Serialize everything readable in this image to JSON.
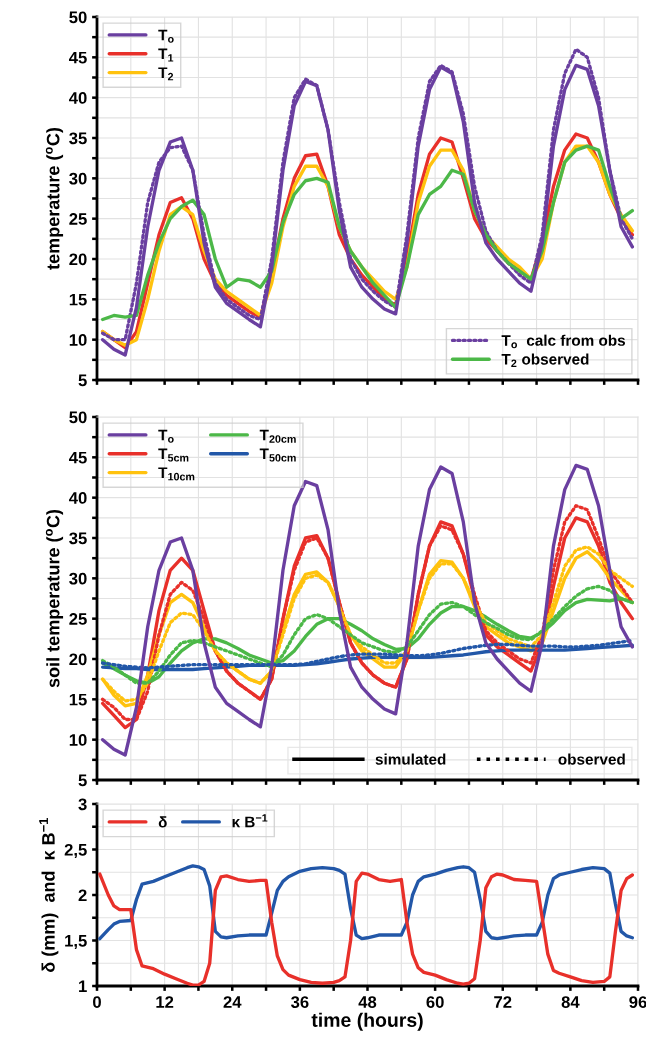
{
  "chart_data": [
    {
      "type": "line",
      "ylabel": "temperature ($^{o}$C)",
      "xlim": [
        0,
        96
      ],
      "ylim": [
        5,
        50
      ],
      "xticks": [
        0,
        {
          "value": 6,
          "label": null
        },
        12,
        {
          "value": 18,
          "label": null
        },
        24,
        {
          "value": 30,
          "label": null
        },
        36,
        {
          "value": 42,
          "label": null
        },
        48,
        {
          "value": 54,
          "label": null
        },
        60,
        {
          "value": 66,
          "label": null
        },
        72,
        {
          "value": 78,
          "label": null
        },
        84,
        {
          "value": 90,
          "label": null
        },
        96
      ],
      "yticks": [
        5,
        {
          "value": 7.5,
          "label": null
        },
        10,
        {
          "value": 12.5,
          "label": null
        },
        15,
        {
          "value": 17.5,
          "label": null
        },
        20,
        {
          "value": 22.5,
          "label": null
        },
        25,
        {
          "value": 27.5,
          "label": null
        },
        30,
        {
          "value": 32.5,
          "label": null
        },
        35,
        {
          "value": 37.5,
          "label": null
        },
        40,
        {
          "value": 42.5,
          "label": null
        },
        45,
        {
          "value": 47.5,
          "label": null
        },
        50
      ],
      "tick_labels": "y",
      "grid": true,
      "legend": "top left",
      "line_style": "solid",
      "x": [
        1,
        3,
        5,
        7,
        9,
        11,
        13,
        15,
        17,
        19,
        21,
        23,
        25,
        27,
        29,
        31,
        33,
        35,
        37,
        39,
        41,
        43,
        45,
        47,
        49,
        51,
        53,
        55,
        57,
        59,
        61,
        63,
        65,
        67,
        69,
        71,
        73,
        75,
        77,
        79,
        81,
        83,
        85,
        87,
        89,
        91,
        93,
        95
      ],
      "series": [
        {
          "name": "T$_{o}$",
          "color": "#6a3fa0",
          "values": [
            10,
            8.8,
            8.1,
            14,
            24,
            31,
            34.5,
            35,
            31,
            22,
            16.5,
            14.5,
            13.5,
            12.5,
            11.6,
            19,
            31,
            39,
            42,
            41.5,
            36,
            26,
            19,
            16.5,
            15,
            13.8,
            13.2,
            22,
            34,
            41,
            43.8,
            43,
            37,
            27,
            22,
            20,
            18.5,
            17,
            16,
            22,
            34,
            41,
            44,
            43.5,
            39,
            31,
            24,
            21.5
          ]
        },
        {
          "name": "T$_{1}$",
          "color": "#e8302a",
          "values": [
            11,
            10,
            9,
            11,
            17,
            23,
            27,
            27.6,
            25,
            20,
            17,
            15.5,
            14.5,
            13.5,
            12.8,
            18,
            25,
            30,
            32.8,
            33,
            29,
            23,
            20,
            18,
            16.5,
            15,
            14.3,
            20,
            28,
            33,
            35,
            34.5,
            30,
            25,
            22.5,
            21,
            19.5,
            18.5,
            17.5,
            22,
            29,
            33.5,
            35.5,
            35,
            32,
            28,
            25,
            23
          ]
        },
        {
          "name": "T$_{2}$",
          "color": "#ffc20e",
          "values": [
            11,
            10,
            9.3,
            10,
            15,
            21,
            25.5,
            26.5,
            25.5,
            21,
            17.5,
            16,
            15,
            14,
            13,
            17,
            24,
            29,
            31.5,
            31.5,
            29,
            24,
            21,
            19,
            17.5,
            16,
            15,
            19,
            27,
            31.5,
            33.5,
            33.5,
            31,
            26,
            23,
            21.5,
            20,
            19,
            17.5,
            20,
            27,
            32,
            34,
            34,
            32,
            28,
            25.5,
            23.5
          ]
        },
        {
          "name": "T$_{o}$  calc from obs",
          "color": "#6a3fa0",
          "line_style": "dotted",
          "values": [
            10.8,
            10,
            10,
            17,
            27,
            32,
            33.8,
            34,
            31,
            23,
            17,
            15,
            14,
            13,
            12.5,
            20,
            32,
            40,
            42.3,
            41.5,
            36,
            27,
            20,
            17.5,
            16,
            14.8,
            14,
            23,
            35,
            42,
            44,
            43.2,
            38,
            29,
            23.5,
            21,
            19.5,
            18,
            17,
            23,
            36,
            43,
            46,
            45,
            40,
            31,
            25,
            22.5
          ]
        },
        {
          "name": "T$_{2}$ observed",
          "color": "#4cb848",
          "values": [
            12.5,
            13,
            12.8,
            13,
            18,
            22,
            25,
            26.5,
            27.3,
            25.5,
            20,
            16.5,
            17.5,
            17.3,
            16.5,
            18.5,
            24.5,
            28,
            29.7,
            30,
            29.5,
            24,
            21,
            19,
            17,
            15.5,
            14,
            19,
            25.5,
            28,
            29,
            31,
            30.5,
            26,
            23,
            21,
            19.5,
            18.5,
            17.5,
            21,
            27,
            32,
            33.5,
            34,
            33.5,
            29,
            25,
            26
          ]
        }
      ]
    },
    {
      "type": "line",
      "ylabel": "soil temperature ($^{o}$C)",
      "xlim": [
        0,
        96
      ],
      "ylim": [
        5,
        50
      ],
      "xticks": [
        0,
        {
          "value": 6,
          "label": null
        },
        12,
        {
          "value": 18,
          "label": null
        },
        24,
        {
          "value": 30,
          "label": null
        },
        36,
        {
          "value": 42,
          "label": null
        },
        48,
        {
          "value": 54,
          "label": null
        },
        60,
        {
          "value": 66,
          "label": null
        },
        72,
        {
          "value": 78,
          "label": null
        },
        84,
        {
          "value": 90,
          "label": null
        },
        96
      ],
      "yticks": [
        5,
        {
          "value": 7.5,
          "label": null
        },
        10,
        {
          "value": 12.5,
          "label": null
        },
        15,
        {
          "value": 17.5,
          "label": null
        },
        20,
        {
          "value": 22.5,
          "label": null
        },
        25,
        {
          "value": 27.5,
          "label": null
        },
        30,
        {
          "value": 32.5,
          "label": null
        },
        35,
        {
          "value": 37.5,
          "label": null
        },
        40,
        {
          "value": 42.5,
          "label": null
        },
        45,
        {
          "value": 47.5,
          "label": null
        },
        50
      ],
      "tick_labels": "y",
      "grid": true,
      "legend": "top left",
      "line_style": "solid",
      "annotations": [
        "simulated",
        "observed"
      ],
      "x": [
        1,
        3,
        5,
        7,
        9,
        11,
        13,
        15,
        17,
        19,
        21,
        23,
        25,
        27,
        29,
        31,
        33,
        35,
        37,
        39,
        41,
        43,
        45,
        47,
        49,
        51,
        53,
        55,
        57,
        59,
        61,
        63,
        65,
        67,
        69,
        71,
        73,
        75,
        77,
        79,
        81,
        83,
        85,
        87,
        89,
        91,
        93,
        95
      ],
      "series": [
        {
          "name": "T$_{o}$",
          "color": "#6a3fa0",
          "values": [
            10,
            8.8,
            8.1,
            14,
            24,
            31,
            34.5,
            35,
            31,
            22,
            16.5,
            14.5,
            13.5,
            12.5,
            11.6,
            19,
            31,
            39,
            42,
            41.5,
            36,
            26,
            19,
            16.5,
            15,
            13.8,
            13.2,
            22,
            34,
            41,
            43.8,
            43,
            37,
            27,
            22,
            20,
            18.5,
            17,
            16,
            22,
            34,
            41,
            44,
            43.5,
            39,
            31,
            24,
            21.5
          ]
        },
        {
          "name": "T$_{5cm}$",
          "color": "#e8302a",
          "values": [
            14.5,
            13,
            11.5,
            12.5,
            18,
            26,
            31,
            32.5,
            31,
            26,
            21,
            18.5,
            17,
            16,
            15,
            17.5,
            25,
            31.5,
            35,
            35.3,
            32.5,
            27,
            22,
            19.5,
            18,
            17,
            16.5,
            20,
            28,
            34,
            37,
            36.5,
            33,
            27.5,
            23,
            21.5,
            20.5,
            19.5,
            18.5,
            22,
            29,
            35,
            37.5,
            37,
            34,
            29.5,
            27,
            25
          ]
        },
        {
          "name": "T$_{10cm}$",
          "color": "#ffc20e",
          "values": [
            17.5,
            15.5,
            14.2,
            14.5,
            18,
            23,
            27,
            28,
            27,
            24,
            21,
            19.5,
            18.5,
            17.5,
            17,
            18.5,
            23.5,
            28,
            30.5,
            30.8,
            29.5,
            26.5,
            23,
            21,
            20,
            19,
            19,
            21,
            26,
            30.5,
            32.2,
            32,
            30,
            26.5,
            24,
            23,
            22,
            21.5,
            21,
            22,
            26,
            30,
            32.5,
            33.3,
            32,
            30,
            28.5,
            27
          ]
        },
        {
          "name": "T$_{20cm}$",
          "color": "#4cb848",
          "values": [
            19.5,
            18.8,
            18,
            17.3,
            17,
            17.8,
            19.5,
            21,
            22,
            22.5,
            22.5,
            22,
            21.3,
            20.5,
            20,
            19.5,
            19.8,
            21,
            22.8,
            24.3,
            25,
            25,
            24.3,
            23.5,
            22.5,
            21.8,
            21.2,
            21.3,
            22.5,
            24.3,
            25.7,
            26.5,
            26.5,
            26,
            25.2,
            24.3,
            23.5,
            22.8,
            22.6,
            23.3,
            24.5,
            26,
            27,
            27.4,
            27.3,
            27.2,
            27.5,
            27
          ]
        },
        {
          "name": "T$_{50cm}$",
          "color": "#2257a8",
          "values": [
            19.0,
            18.9,
            18.8,
            18.8,
            18.7,
            18.7,
            18.7,
            18.7,
            18.7,
            18.8,
            18.9,
            19.0,
            19.1,
            19.2,
            19.2,
            19.2,
            19.2,
            19.2,
            19.3,
            19.4,
            19.6,
            19.8,
            20.0,
            20.1,
            20.2,
            20.2,
            20.2,
            20.2,
            20.2,
            20.2,
            20.3,
            20.4,
            20.5,
            20.7,
            20.9,
            21.0,
            21.1,
            21.1,
            21.1,
            21.1,
            21.1,
            21.1,
            21.2,
            21.3,
            21.4,
            21.5,
            21.6,
            21.7
          ]
        },
        {
          "color": "#e8302a",
          "line_style": "dotted",
          "values": [
            15,
            14,
            12.5,
            12.5,
            16,
            23,
            28,
            29.5,
            28.5,
            25,
            21,
            18.5,
            17,
            16,
            15,
            17.5,
            25,
            31,
            34.5,
            35,
            32.5,
            27,
            22,
            19.5,
            18,
            17,
            16.5,
            20,
            28,
            34,
            36.5,
            36,
            33,
            28,
            23.5,
            22,
            21,
            20,
            19.5,
            23,
            31,
            37,
            39,
            38.5,
            35,
            31,
            29,
            27
          ]
        },
        {
          "color": "#ffc20e",
          "line_style": "dotted",
          "values": [
            17.5,
            16,
            14.8,
            15,
            17,
            21,
            24.5,
            25.7,
            25.5,
            23.5,
            21,
            19.5,
            18.5,
            17.5,
            17,
            18.5,
            23,
            27.5,
            30,
            30.4,
            29.5,
            26.5,
            23,
            21.5,
            20.5,
            19.5,
            19.5,
            21,
            26,
            30,
            31.8,
            31.8,
            30,
            27,
            24.5,
            23.5,
            22.5,
            22,
            21.5,
            23,
            27,
            31.5,
            33.5,
            33.9,
            33,
            31,
            30,
            29
          ]
        },
        {
          "color": "#4cb848",
          "line_style": "dotted",
          "values": [
            19.8,
            19,
            18,
            17,
            17,
            18.5,
            20.5,
            22,
            22.3,
            22,
            21.5,
            21,
            20.5,
            20,
            19.5,
            19,
            20.5,
            23,
            25,
            25.5,
            25,
            24,
            23,
            22,
            21.5,
            21,
            20.8,
            21.5,
            23.5,
            25.5,
            26.8,
            27,
            26.5,
            25.5,
            24.5,
            23.8,
            23,
            22.5,
            22.4,
            23.5,
            25,
            26.5,
            27.8,
            28.7,
            29,
            28.5,
            27.5,
            27
          ]
        },
        {
          "color": "#2257a8",
          "line_style": "dotted",
          "values": [
            19.5,
            19.3,
            19.1,
            19.0,
            18.9,
            19.0,
            19.1,
            19.2,
            19.3,
            19.3,
            19.3,
            19.3,
            19.3,
            19.3,
            19.3,
            19.3,
            19.3,
            19.3,
            19.4,
            19.7,
            20.0,
            20.3,
            20.5,
            20.6,
            20.6,
            20.6,
            20.5,
            20.4,
            20.4,
            20.5,
            20.7,
            21.0,
            21.3,
            21.5,
            21.7,
            21.8,
            21.8,
            21.7,
            21.6,
            21.6,
            21.6,
            21.5,
            21.5,
            21.6,
            21.7,
            21.9,
            22.1,
            22.3
          ]
        }
      ]
    },
    {
      "type": "line",
      "xlabel": "time (hours)",
      "ylabel": "δ (mm)  and  κ B$^{−1}$",
      "xlim": [
        0,
        96
      ],
      "ylim": [
        1,
        3
      ],
      "xticks": [
        0,
        {
          "value": 6,
          "label": null
        },
        12,
        {
          "value": 18,
          "label": null
        },
        24,
        {
          "value": 30,
          "label": null
        },
        36,
        {
          "value": 42,
          "label": null
        },
        48,
        {
          "value": 54,
          "label": null
        },
        60,
        {
          "value": 66,
          "label": null
        },
        72,
        {
          "value": 78,
          "label": null
        },
        84,
        {
          "value": 90,
          "label": null
        },
        96
      ],
      "yticks": [
        1,
        {
          "value": 1.25,
          "label": null
        },
        {
          "value": 1.5,
          "label": "1,5"
        },
        {
          "value": 1.75,
          "label": null
        },
        2,
        {
          "value": 2.25,
          "label": null
        },
        {
          "value": 2.5,
          "label": "2,5"
        },
        {
          "value": 2.75,
          "label": null
        },
        3
      ],
      "grid": true,
      "legend": "top left",
      "line_style": "solid",
      "x": [
        0.5,
        2,
        3,
        4,
        6,
        7,
        8,
        10,
        12,
        14,
        16,
        17,
        18,
        19,
        20,
        21,
        22,
        23,
        25,
        27,
        29,
        30,
        31,
        32,
        33,
        34,
        36,
        38,
        40,
        42,
        43,
        44,
        45,
        46,
        47,
        48,
        50,
        52,
        54,
        55,
        56,
        57,
        58,
        60,
        62,
        64,
        65,
        66,
        67,
        68,
        69,
        70,
        71,
        72,
        74,
        76,
        78,
        79,
        80,
        81,
        82,
        84,
        86,
        88,
        90,
        91,
        92,
        93,
        94,
        95
      ],
      "series": [
        {
          "name": "δ",
          "color": "#e8302a",
          "values": [
            2.23,
            2.0,
            1.88,
            1.84,
            1.84,
            1.4,
            1.22,
            1.19,
            1.13,
            1.08,
            1.03,
            1.01,
            1.01,
            1.05,
            1.25,
            2.05,
            2.2,
            2.21,
            2.17,
            2.15,
            2.16,
            2.16,
            1.7,
            1.33,
            1.18,
            1.12,
            1.07,
            1.04,
            1.03,
            1.04,
            1.06,
            1.1,
            1.5,
            2.15,
            2.24,
            2.23,
            2.17,
            2.15,
            2.17,
            1.7,
            1.35,
            1.2,
            1.15,
            1.12,
            1.07,
            1.03,
            1.02,
            1.03,
            1.08,
            1.5,
            2.08,
            2.2,
            2.23,
            2.22,
            2.17,
            2.16,
            2.15,
            1.75,
            1.35,
            1.17,
            1.14,
            1.1,
            1.06,
            1.04,
            1.05,
            1.1,
            1.6,
            2.05,
            2.18,
            2.22
          ]
        },
        {
          "name": "κ B$^{−1}$",
          "color": "#2257a8",
          "values": [
            1.52,
            1.62,
            1.68,
            1.71,
            1.72,
            1.95,
            2.12,
            2.15,
            2.2,
            2.25,
            2.3,
            2.32,
            2.31,
            2.28,
            2.1,
            1.6,
            1.54,
            1.53,
            1.55,
            1.56,
            1.56,
            1.56,
            1.8,
            2.05,
            2.15,
            2.2,
            2.26,
            2.29,
            2.3,
            2.29,
            2.27,
            2.23,
            1.85,
            1.56,
            1.52,
            1.53,
            1.56,
            1.56,
            1.56,
            1.7,
            2.0,
            2.15,
            2.2,
            2.23,
            2.27,
            2.3,
            2.31,
            2.3,
            2.25,
            1.95,
            1.6,
            1.53,
            1.52,
            1.53,
            1.55,
            1.56,
            1.56,
            1.7,
            2.0,
            2.18,
            2.22,
            2.25,
            2.28,
            2.3,
            2.29,
            2.24,
            1.9,
            1.6,
            1.55,
            1.53
          ]
        }
      ]
    }
  ]
}
